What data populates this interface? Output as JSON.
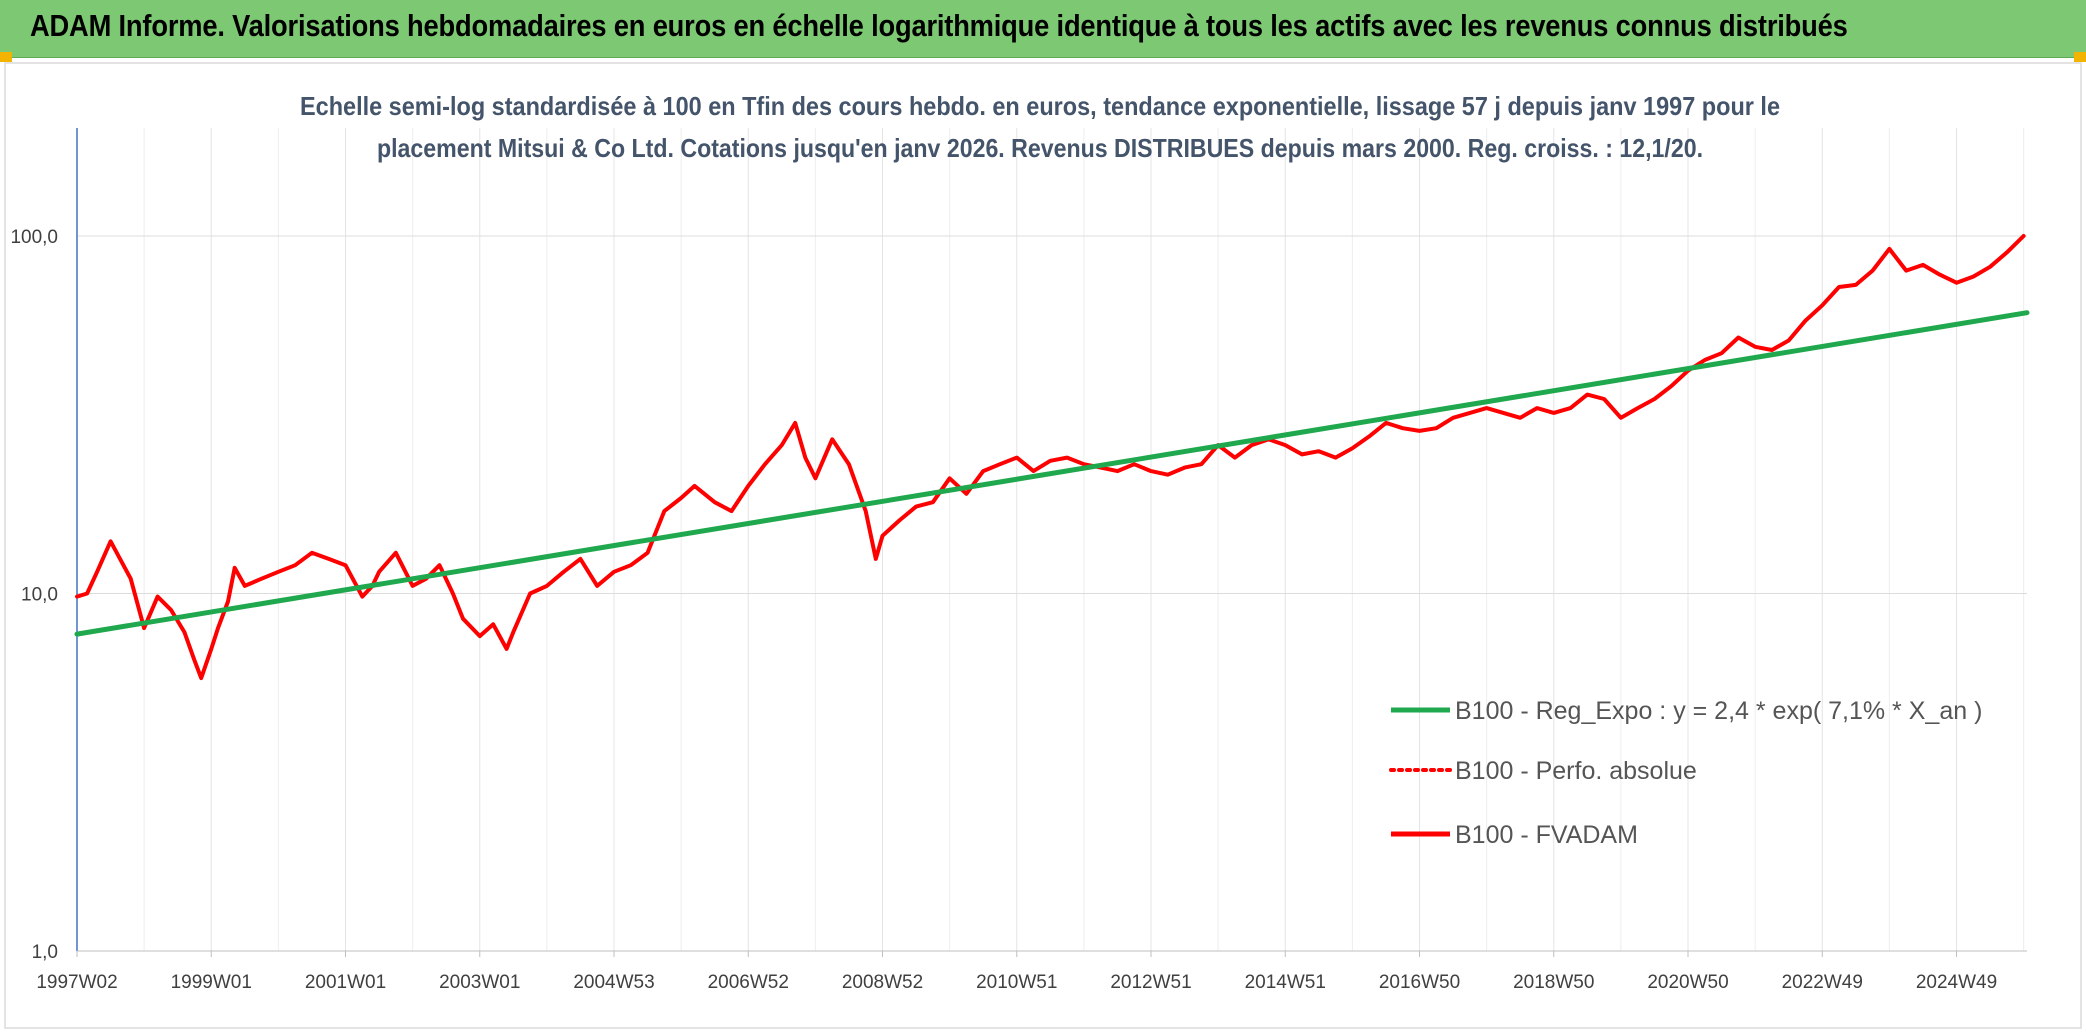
{
  "page": {
    "banner_title": "ADAM Informe. Valorisations hebdomadaires en euros en échelle logarithmique identique à tous les actifs avec les revenus connus distribués",
    "colors": {
      "banner": "#7dc872",
      "accent": "#f2b400"
    }
  },
  "chart_data": {
    "type": "line",
    "subtitle_line1": "Echelle semi-log standardisée à 100 en Tfin des cours hebdo. en euros, tendance exponentielle, lissage 57 j depuis janv 1997 pour le",
    "subtitle_line2": "placement Mitsui & Co Ltd. Cotations jusqu'en janv 2026. Revenus DISTRIBUES depuis mars 2000. Reg. croiss. : 12,1/20.",
    "y_scale": "log",
    "ylim": [
      1,
      100
    ],
    "y_ticks": [
      {
        "value": 100,
        "label": "100,0"
      },
      {
        "value": 10,
        "label": "10,0"
      },
      {
        "value": 1,
        "label": "1,0"
      }
    ],
    "xlim": [
      1997.0,
      2026.05
    ],
    "x_ticks": [
      {
        "value": 1997.0,
        "label": "1997W02"
      },
      {
        "value": 1999.0,
        "label": "1999W01"
      },
      {
        "value": 2001.0,
        "label": "2001W01"
      },
      {
        "value": 2003.0,
        "label": "2003W01"
      },
      {
        "value": 2005.0,
        "label": "2004W53"
      },
      {
        "value": 2007.0,
        "label": "2006W52"
      },
      {
        "value": 2009.0,
        "label": "2008W52"
      },
      {
        "value": 2011.0,
        "label": "2010W51"
      },
      {
        "value": 2013.0,
        "label": "2012W51"
      },
      {
        "value": 2015.0,
        "label": "2014W51"
      },
      {
        "value": 2017.0,
        "label": "2016W50"
      },
      {
        "value": 2019.0,
        "label": "2018W50"
      },
      {
        "value": 2021.0,
        "label": "2020W50"
      },
      {
        "value": 2023.0,
        "label": "2022W49"
      },
      {
        "value": 2025.0,
        "label": "2024W49"
      }
    ],
    "grid": true,
    "legend_position": "bottom-right",
    "series": [
      {
        "name": "B100 - Reg_Expo : y = 2,4 * exp( 7,1% *  X_an )",
        "color": "#1fa84d",
        "style": "solid",
        "x": [
          1997.0,
          2026.05
        ],
        "y": [
          7.7,
          61.0
        ]
      },
      {
        "name": "B100 - Perfo. absolue",
        "color": "#ff0000",
        "style": "dotted",
        "x": [],
        "y": []
      },
      {
        "name": "B100 - FVADAM",
        "color": "#ff0000",
        "style": "solid",
        "x": [
          1997.0,
          1997.15,
          1997.3,
          1997.5,
          1997.8,
          1998.0,
          1998.2,
          1998.4,
          1998.6,
          1998.75,
          1998.85,
          1999.0,
          1999.1,
          1999.25,
          1999.35,
          1999.5,
          1999.75,
          2000.0,
          2000.25,
          2000.5,
          2000.75,
          2001.0,
          2001.25,
          2001.4,
          2001.5,
          2001.75,
          2002.0,
          2002.2,
          2002.4,
          2002.6,
          2002.75,
          2003.0,
          2003.2,
          2003.4,
          2003.5,
          2003.75,
          2004.0,
          2004.25,
          2004.5,
          2004.75,
          2005.0,
          2005.25,
          2005.5,
          2005.75,
          2006.0,
          2006.2,
          2006.5,
          2006.75,
          2007.0,
          2007.25,
          2007.5,
          2007.7,
          2007.85,
          2008.0,
          2008.25,
          2008.5,
          2008.75,
          2008.9,
          2009.0,
          2009.25,
          2009.5,
          2009.75,
          2010.0,
          2010.25,
          2010.5,
          2010.75,
          2011.0,
          2011.25,
          2011.5,
          2011.75,
          2012.0,
          2012.25,
          2012.5,
          2012.75,
          2013.0,
          2013.25,
          2013.5,
          2013.75,
          2014.0,
          2014.25,
          2014.5,
          2014.75,
          2015.0,
          2015.25,
          2015.5,
          2015.75,
          2016.0,
          2016.25,
          2016.5,
          2016.75,
          2017.0,
          2017.25,
          2017.5,
          2017.75,
          2018.0,
          2018.25,
          2018.5,
          2018.75,
          2019.0,
          2019.25,
          2019.5,
          2019.75,
          2020.0,
          2020.25,
          2020.5,
          2020.75,
          2021.0,
          2021.25,
          2021.5,
          2021.75,
          2022.0,
          2022.25,
          2022.5,
          2022.75,
          2023.0,
          2023.25,
          2023.5,
          2023.75,
          2024.0,
          2024.25,
          2024.5,
          2024.75,
          2025.0,
          2025.25,
          2025.5,
          2025.75,
          2026.0
        ],
        "y": [
          9.8,
          10.0,
          11.5,
          14.0,
          11.0,
          8.0,
          9.8,
          9.0,
          7.8,
          6.5,
          5.8,
          7.0,
          8.0,
          9.5,
          11.8,
          10.5,
          11.0,
          11.5,
          12.0,
          13.0,
          12.5,
          12.0,
          9.8,
          10.5,
          11.5,
          13.0,
          10.5,
          11.0,
          12.0,
          10.0,
          8.5,
          7.6,
          8.2,
          7.0,
          7.8,
          10.0,
          10.5,
          11.5,
          12.5,
          10.5,
          11.5,
          12.0,
          13.0,
          17.0,
          18.5,
          20.0,
          18.0,
          17.0,
          20.0,
          23.0,
          26.0,
          30.0,
          24.0,
          21.0,
          27.0,
          23.0,
          17.0,
          12.5,
          14.5,
          16.0,
          17.5,
          18.0,
          21.0,
          19.0,
          22.0,
          23.0,
          24.0,
          22.0,
          23.5,
          24.0,
          23.0,
          22.5,
          22.0,
          23.0,
          22.0,
          21.5,
          22.5,
          23.0,
          26.0,
          24.0,
          26.0,
          27.0,
          26.0,
          24.5,
          25.0,
          24.0,
          25.5,
          27.5,
          30.0,
          29.0,
          28.5,
          29.0,
          31.0,
          32.0,
          33.0,
          32.0,
          31.0,
          33.0,
          32.0,
          33.0,
          36.0,
          35.0,
          31.0,
          33.0,
          35.0,
          38.0,
          42.0,
          45.0,
          47.0,
          52.0,
          49.0,
          48.0,
          51.0,
          58.0,
          64.0,
          72.0,
          73.0,
          80.0,
          92.0,
          80.0,
          83.0,
          78.0,
          74.0,
          77.0,
          82.0,
          90.0,
          100.0
        ]
      }
    ]
  }
}
